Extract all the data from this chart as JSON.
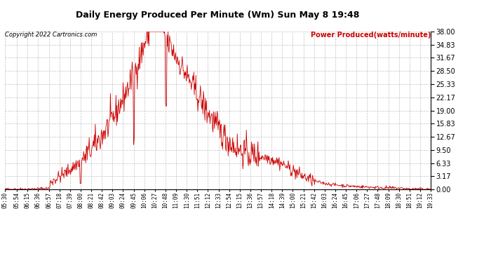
{
  "title": "Daily Energy Produced Per Minute (Wm) Sun May 8 19:48",
  "copyright": "Copyright 2022 Cartronics.com",
  "legend_label": "Power Produced(watts/minute)",
  "line_color": "#cc0000",
  "background_color": "#ffffff",
  "grid_color": "#999999",
  "ylim": [
    0,
    38.0
  ],
  "yticks": [
    0.0,
    3.17,
    6.33,
    9.5,
    12.67,
    15.83,
    19.0,
    22.17,
    25.33,
    28.5,
    31.67,
    34.83,
    38.0
  ],
  "xtick_labels": [
    "05:30",
    "05:54",
    "06:15",
    "06:36",
    "06:57",
    "07:18",
    "07:39",
    "08:00",
    "08:21",
    "08:42",
    "09:03",
    "09:24",
    "09:45",
    "10:06",
    "10:27",
    "10:48",
    "11:09",
    "11:30",
    "11:51",
    "12:12",
    "12:33",
    "12:54",
    "13:15",
    "13:36",
    "13:57",
    "14:18",
    "14:39",
    "15:00",
    "15:21",
    "15:42",
    "16:03",
    "16:24",
    "16:45",
    "17:06",
    "17:27",
    "17:48",
    "18:09",
    "18:30",
    "18:51",
    "19:12",
    "19:33"
  ]
}
